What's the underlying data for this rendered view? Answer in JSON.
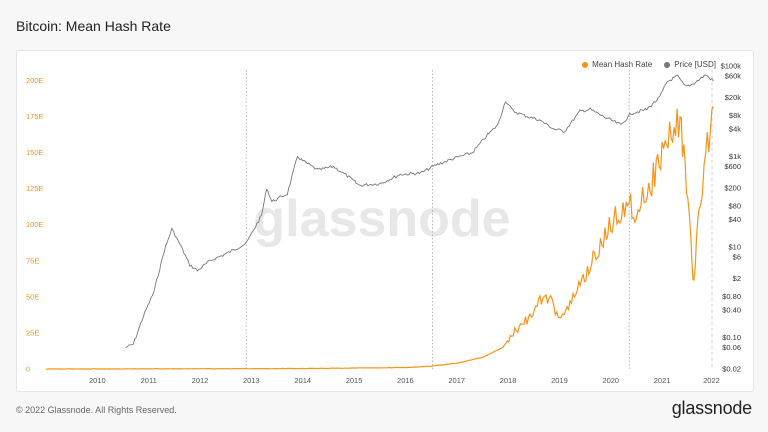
{
  "title": "Bitcoin: Mean Hash Rate",
  "footer": "© 2022 Glassnode. All Rights Reserved.",
  "brand": "glassnode",
  "watermark": "glassnode",
  "colors": {
    "hash": "#f7931a",
    "price": "#777777",
    "leftAxis": "#f7931a"
  },
  "chart_data": {
    "type": "line",
    "x_axis": {
      "ticks": [
        "2010",
        "2011",
        "2012",
        "2013",
        "2014",
        "2015",
        "2016",
        "2017",
        "2018",
        "2019",
        "2020",
        "2021",
        "2022"
      ],
      "range": [
        2009.0,
        2022.05
      ]
    },
    "y_left": {
      "ticks": [
        0,
        25,
        50,
        75,
        100,
        125,
        150,
        175,
        200
      ],
      "tick_labels": [
        "0",
        "25E",
        "50E",
        "75E",
        "100E",
        "125E",
        "150E",
        "175E",
        "200E"
      ],
      "range": [
        0,
        210
      ]
    },
    "y_right": {
      "scale": "log",
      "tick_values": [
        0.02,
        0.06,
        0.1,
        0.4,
        0.8,
        2,
        6,
        10,
        40,
        80,
        200,
        600,
        1000,
        4000,
        8000,
        20000,
        60000,
        100000
      ],
      "tick_labels": [
        "$0.02",
        "$0.06",
        "$0.10",
        "$0.40",
        "$0.80",
        "$2",
        "$6",
        "$10",
        "$40",
        "$80",
        "$200",
        "$600",
        "$1k",
        "$4k",
        "$8k",
        "$20k",
        "$60k",
        "$100k"
      ],
      "range": [
        0.02,
        100000
      ]
    },
    "halvings": [
      2012.9,
      2016.53,
      2020.36
    ],
    "series": [
      {
        "name": "Mean Hash Rate",
        "axis": "left",
        "points": [
          [
            2009.0,
            0
          ],
          [
            2014.0,
            0.3
          ],
          [
            2016.0,
            1
          ],
          [
            2016.5,
            2
          ],
          [
            2017.0,
            4
          ],
          [
            2017.5,
            8
          ],
          [
            2017.9,
            15
          ],
          [
            2018.1,
            25
          ],
          [
            2018.4,
            35
          ],
          [
            2018.65,
            48
          ],
          [
            2018.8,
            50
          ],
          [
            2018.95,
            38
          ],
          [
            2019.15,
            40
          ],
          [
            2019.35,
            55
          ],
          [
            2019.6,
            72
          ],
          [
            2019.8,
            85
          ],
          [
            2020.0,
            100
          ],
          [
            2020.3,
            115
          ],
          [
            2020.5,
            110
          ],
          [
            2020.8,
            130
          ],
          [
            2021.0,
            150
          ],
          [
            2021.35,
            175
          ],
          [
            2021.45,
            140
          ],
          [
            2021.55,
            90
          ],
          [
            2021.62,
            60
          ],
          [
            2021.72,
            110
          ],
          [
            2021.85,
            150
          ],
          [
            2022.0,
            182
          ]
        ]
      },
      {
        "name": "Price [USD]",
        "axis": "right",
        "points": [
          [
            2010.55,
            0.06
          ],
          [
            2010.7,
            0.07
          ],
          [
            2010.9,
            0.3
          ],
          [
            2011.1,
            1
          ],
          [
            2011.3,
            8
          ],
          [
            2011.45,
            25
          ],
          [
            2011.6,
            12
          ],
          [
            2011.8,
            4
          ],
          [
            2011.95,
            3
          ],
          [
            2012.2,
            5
          ],
          [
            2012.5,
            7
          ],
          [
            2012.9,
            12
          ],
          [
            2013.2,
            50
          ],
          [
            2013.3,
            200
          ],
          [
            2013.4,
            100
          ],
          [
            2013.7,
            150
          ],
          [
            2013.9,
            1000
          ],
          [
            2014.0,
            800
          ],
          [
            2014.3,
            500
          ],
          [
            2014.6,
            600
          ],
          [
            2014.9,
            350
          ],
          [
            2015.1,
            230
          ],
          [
            2015.5,
            250
          ],
          [
            2015.9,
            400
          ],
          [
            2016.3,
            430
          ],
          [
            2016.6,
            650
          ],
          [
            2017.0,
            950
          ],
          [
            2017.3,
            1200
          ],
          [
            2017.6,
            3000
          ],
          [
            2017.8,
            5000
          ],
          [
            2017.95,
            17000
          ],
          [
            2018.1,
            10000
          ],
          [
            2018.4,
            7500
          ],
          [
            2018.6,
            6500
          ],
          [
            2018.9,
            4000
          ],
          [
            2019.1,
            3600
          ],
          [
            2019.4,
            10000
          ],
          [
            2019.6,
            11000
          ],
          [
            2019.9,
            7200
          ],
          [
            2020.2,
            5000
          ],
          [
            2020.4,
            9000
          ],
          [
            2020.7,
            11000
          ],
          [
            2020.95,
            20000
          ],
          [
            2021.1,
            45000
          ],
          [
            2021.3,
            60000
          ],
          [
            2021.45,
            35000
          ],
          [
            2021.6,
            40000
          ],
          [
            2021.85,
            64000
          ],
          [
            2022.0,
            46000
          ]
        ]
      }
    ],
    "legend": {
      "position": "top-right",
      "items": [
        "Mean Hash Rate",
        "Price [USD]"
      ]
    }
  }
}
